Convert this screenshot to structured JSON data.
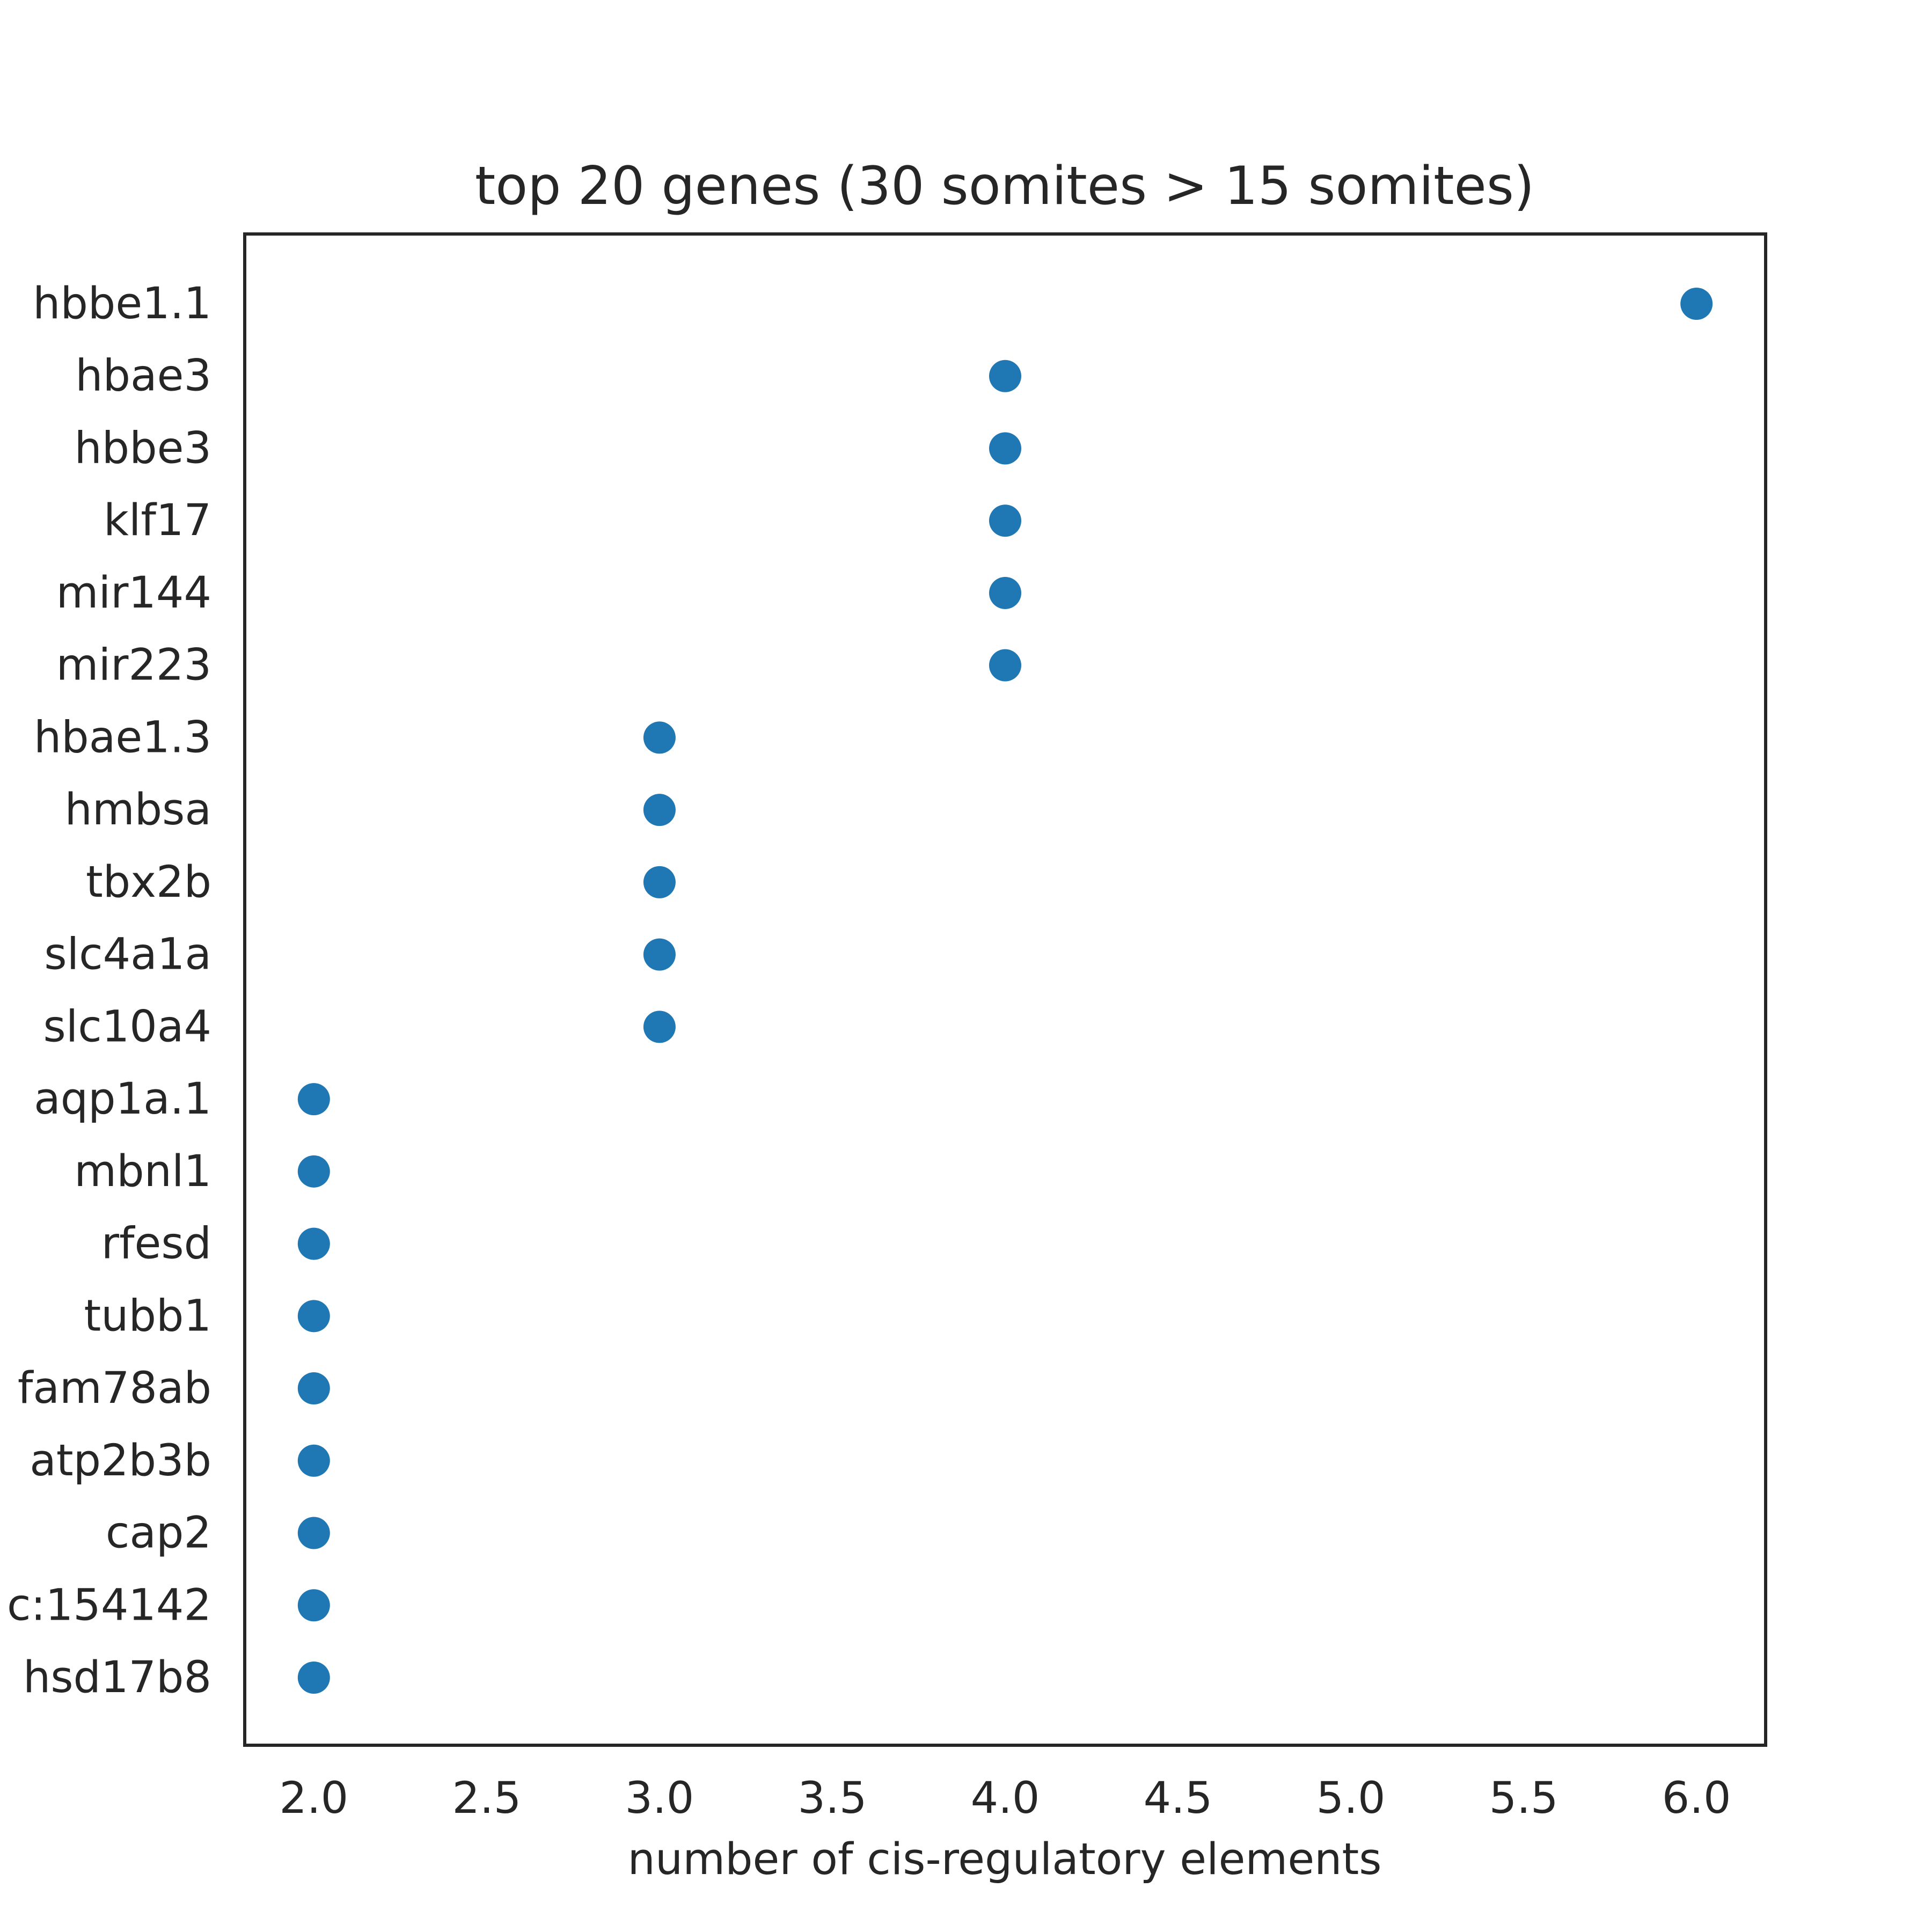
{
  "chart_data": {
    "type": "scatter",
    "title": "top 20 genes (30 somites > 15 somites)",
    "xlabel": "number of cis-regulatory elements",
    "ylabel": "",
    "xlim": [
      1.8,
      6.2
    ],
    "x_ticks": [
      "2.0",
      "2.5",
      "3.0",
      "3.5",
      "4.0",
      "4.5",
      "5.0",
      "5.5",
      "6.0"
    ],
    "categories": [
      "hbbe1.1",
      "hbae3",
      "hbbe3",
      "klf17",
      "mir144",
      "mir223",
      "hbae1.3",
      "hmbsa",
      "tbx2b",
      "slc4a1a",
      "slc10a4",
      "aqp1a.1",
      "mbnl1",
      "rfesd",
      "tubb1",
      "fam78ab",
      "atp2b3b",
      "cap2",
      "c:154142",
      "hsd17b8"
    ],
    "values": [
      6,
      4,
      4,
      4,
      4,
      4,
      3,
      3,
      3,
      3,
      3,
      2,
      2,
      2,
      2,
      2,
      2,
      2,
      2,
      2
    ],
    "grid": false,
    "marker_color": "#1f77b4",
    "axis_color": "#262626"
  }
}
